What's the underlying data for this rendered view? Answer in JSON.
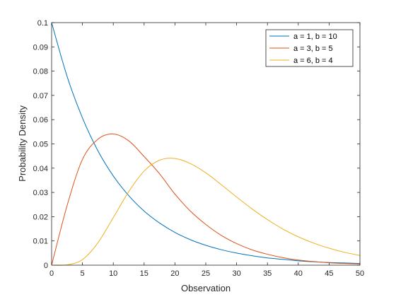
{
  "chart_data": {
    "type": "line",
    "xlabel": "Observation",
    "ylabel": "Probability Density",
    "xlim": [
      0,
      50
    ],
    "ylim": [
      0,
      0.1
    ],
    "xticks": [
      0,
      5,
      10,
      15,
      20,
      25,
      30,
      35,
      40,
      45,
      50
    ],
    "yticks": [
      0,
      0.01,
      0.02,
      0.03,
      0.04,
      0.05,
      0.06,
      0.07,
      0.08,
      0.09,
      0.1
    ],
    "xtick_labels": [
      "0",
      "5",
      "10",
      "15",
      "20",
      "25",
      "30",
      "35",
      "40",
      "45",
      "50"
    ],
    "ytick_labels": [
      "0",
      "0.01",
      "0.02",
      "0.03",
      "0.04",
      "0.05",
      "0.06",
      "0.07",
      "0.08",
      "0.09",
      "0.1"
    ],
    "grid": false,
    "legend_position": "top-right",
    "x": [
      0,
      2.5,
      5,
      7.5,
      10,
      12.5,
      15,
      17.5,
      20,
      22.5,
      25,
      27.5,
      30,
      32.5,
      35,
      37.5,
      40,
      42.5,
      45,
      47.5,
      50
    ],
    "series": [
      {
        "name": "a = 1, b = 10",
        "color": "#0072BD",
        "values": [
          0.1,
          0.0779,
          0.0607,
          0.0472,
          0.0368,
          0.0287,
          0.0223,
          0.0174,
          0.0135,
          0.0105,
          0.0082,
          0.0064,
          0.005,
          0.0039,
          0.003,
          0.0024,
          0.0018,
          0.0014,
          0.0011,
          0.0009,
          0.0007
        ]
      },
      {
        "name": "a = 3, b = 5",
        "color": "#D95319",
        "values": [
          0,
          0.0245,
          0.0436,
          0.0519,
          0.0541,
          0.0513,
          0.0448,
          0.0377,
          0.0293,
          0.0223,
          0.0168,
          0.0123,
          0.0089,
          0.0063,
          0.0045,
          0.0031,
          0.0021,
          0.0015,
          0.001,
          0.0007,
          0.0005
        ]
      },
      {
        "name": "a = 6, b = 4",
        "color": "#EDB120",
        "values": [
          0,
          0.00013,
          0.0023,
          0.0092,
          0.0196,
          0.0303,
          0.0388,
          0.0433,
          0.044,
          0.0419,
          0.0381,
          0.0332,
          0.0281,
          0.0232,
          0.0188,
          0.0149,
          0.0117,
          0.0091,
          0.007,
          0.0053,
          0.004
        ]
      }
    ]
  }
}
